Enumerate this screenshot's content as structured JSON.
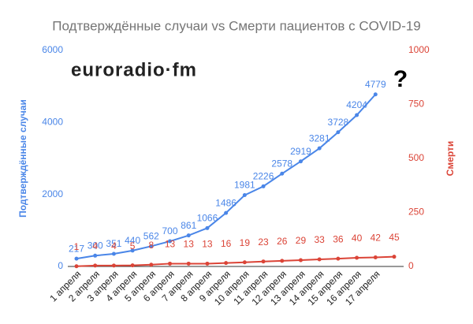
{
  "chart_data": {
    "type": "line",
    "title": "Подтверждённые случаи vs Смерти пациентов с COVID-19",
    "categories": [
      "1 апреля",
      "2 апреля",
      "3 апреля",
      "4 апреля",
      "5 апреля",
      "6 апреля",
      "7 апреля",
      "8 апреля",
      "9 апреля",
      "10 апреля",
      "11 апреля",
      "12 апреля",
      "13 апреля",
      "14 апреля",
      "15 апреля",
      "16 апреля",
      "17 апреля",
      null
    ],
    "series": [
      {
        "name": "Подтверждённые случаи",
        "color": "#4a86e8",
        "values": [
          217,
          300,
          351,
          440,
          562,
          700,
          861,
          1066,
          1486,
          1981,
          2226,
          2578,
          2919,
          3281,
          3728,
          4204,
          4779,
          null
        ]
      },
      {
        "name": "Смерти",
        "color": "#db4437",
        "axis": "y2",
        "values": [
          1,
          4,
          4,
          5,
          8,
          13,
          13,
          13,
          16,
          19,
          23,
          26,
          29,
          33,
          36,
          40,
          42,
          45
        ]
      }
    ],
    "ylabel": "Подтверждённые случаи",
    "y2label": "Смерти",
    "ylim": [
      0,
      6000
    ],
    "yticks": [
      0,
      2000,
      4000,
      6000
    ],
    "y2lim": [
      0,
      1000
    ],
    "y2ticks": [
      0,
      250,
      500,
      750,
      1000
    ],
    "annotations": [
      "?"
    ],
    "logo": "euroradio·fm",
    "grid": false
  }
}
